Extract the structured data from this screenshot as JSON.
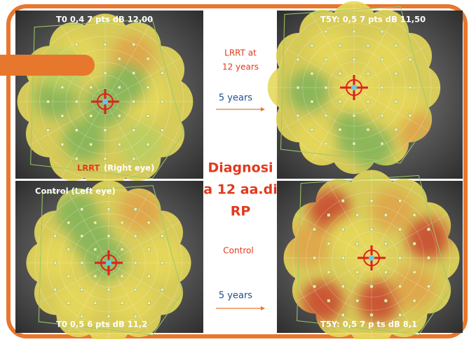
{
  "panels": {
    "top_left": {
      "caption": "T0 0,4 7 pts dB 12,00",
      "eye_label_red": "LRRT",
      "eye_label": "(Right eye)"
    },
    "top_right": {
      "caption": "T5Y: 0,5 7 pts dB 11,50"
    },
    "bottom_left": {
      "caption": "T0 0,5 6 pts  dB 11,2",
      "eye_label": "Control (Left eye)"
    },
    "bottom_right": {
      "caption": "T5Y: 0,5 7 p     ts dB 8,1"
    }
  },
  "middle": {
    "treatment_lines": [
      "LRRT at",
      "12 years"
    ],
    "top_interval": "5 years",
    "diagnosis_lines": [
      "Diagnosi",
      "a 12 aa.di",
      "RP"
    ],
    "control": "Control",
    "bottom_interval": "5 years"
  }
}
